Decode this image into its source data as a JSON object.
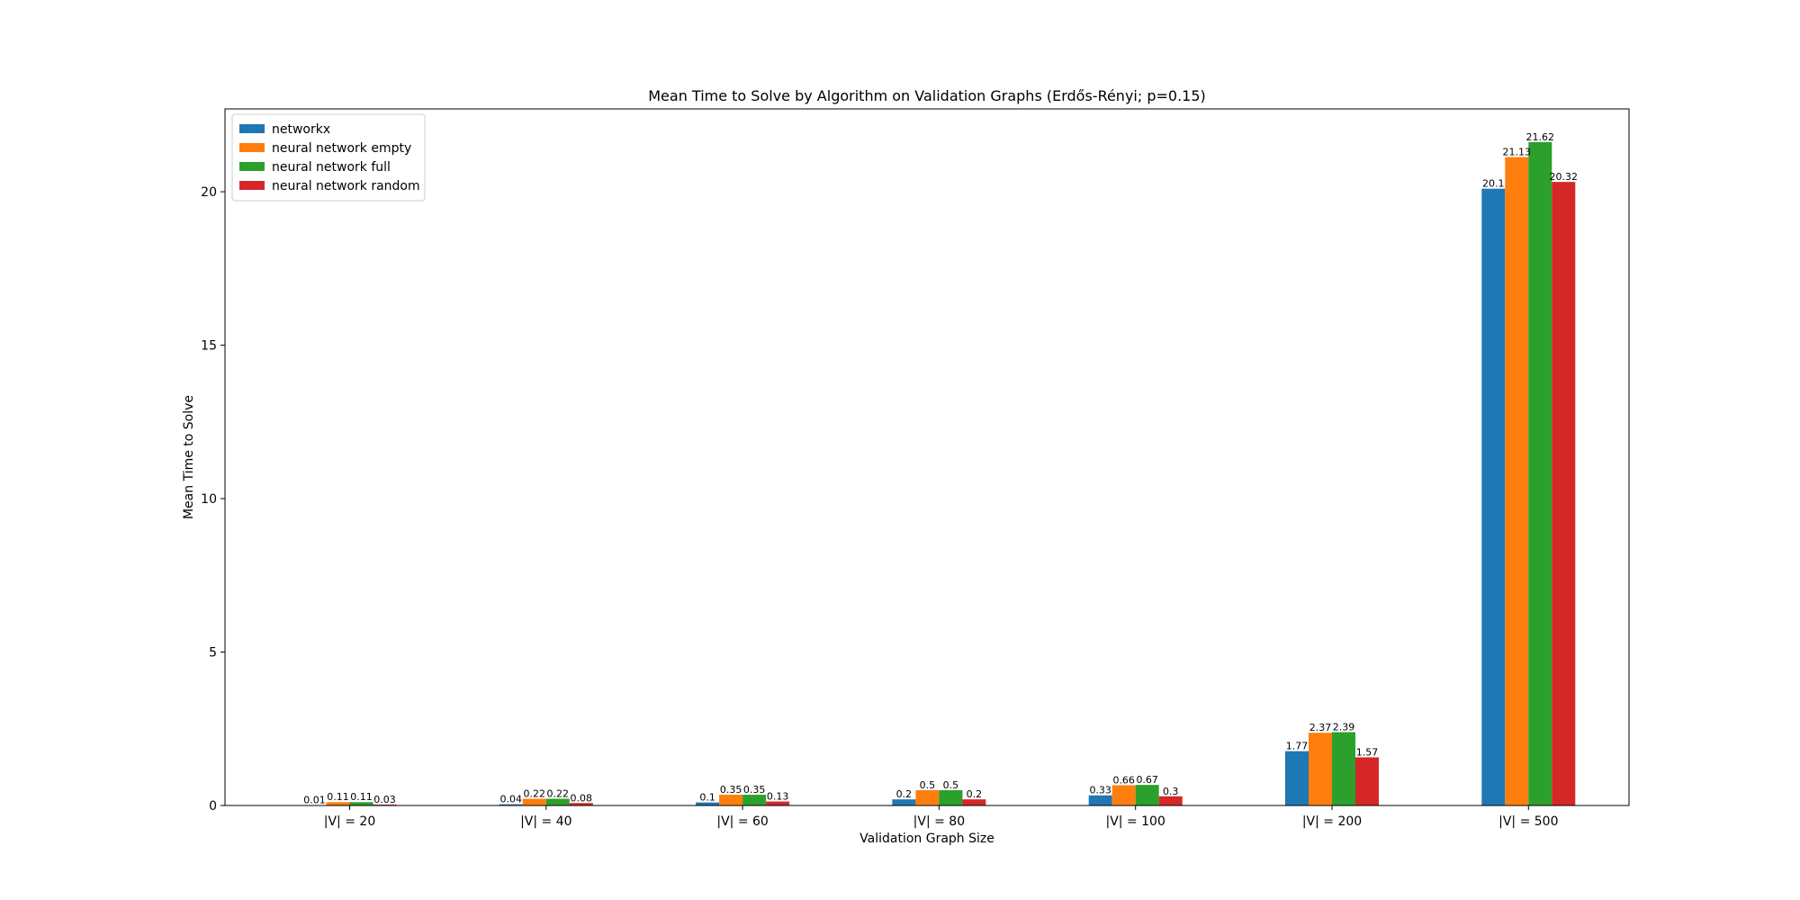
{
  "chart_data": {
    "type": "bar",
    "title": "Mean Time to Solve by Algorithm on Validation Graphs (Erdős-Rényi; p=0.15)",
    "xlabel": "Validation Graph Size",
    "ylabel": "Mean Time to Solve",
    "categories": [
      "|V| = 20",
      "|V| = 40",
      "|V| = 60",
      "|V| = 80",
      "|V| = 100",
      "|V| = 200",
      "|V| = 500"
    ],
    "ylim": [
      0,
      22.7
    ],
    "yticks": [
      0,
      5,
      10,
      15,
      20
    ],
    "grid": false,
    "legend_position": "top-left",
    "series": [
      {
        "name": "networkx",
        "color": "#1f77b4",
        "values": [
          0.01,
          0.04,
          0.1,
          0.2,
          0.33,
          1.77,
          20.1
        ],
        "labels": [
          "0.01",
          "0.04",
          "0.1",
          "0.2",
          "0.33",
          "1.77",
          "20.1"
        ]
      },
      {
        "name": "neural network empty",
        "color": "#ff7f0e",
        "values": [
          0.11,
          0.22,
          0.35,
          0.5,
          0.66,
          2.37,
          21.13
        ],
        "labels": [
          "0.11",
          "0.22",
          "0.35",
          "0.5",
          "0.66",
          "2.37",
          "21.13"
        ]
      },
      {
        "name": "neural network full",
        "color": "#2ca02c",
        "values": [
          0.11,
          0.22,
          0.35,
          0.5,
          0.67,
          2.39,
          21.62
        ],
        "labels": [
          "0.11",
          "0.22",
          "0.35",
          "0.5",
          "0.67",
          "2.39",
          "21.62"
        ]
      },
      {
        "name": "neural network random",
        "color": "#d62728",
        "values": [
          0.03,
          0.08,
          0.13,
          0.2,
          0.3,
          1.57,
          20.32
        ],
        "labels": [
          "0.03",
          "0.08",
          "0.13",
          "0.2",
          "0.3",
          "1.57",
          "20.32"
        ]
      }
    ]
  }
}
